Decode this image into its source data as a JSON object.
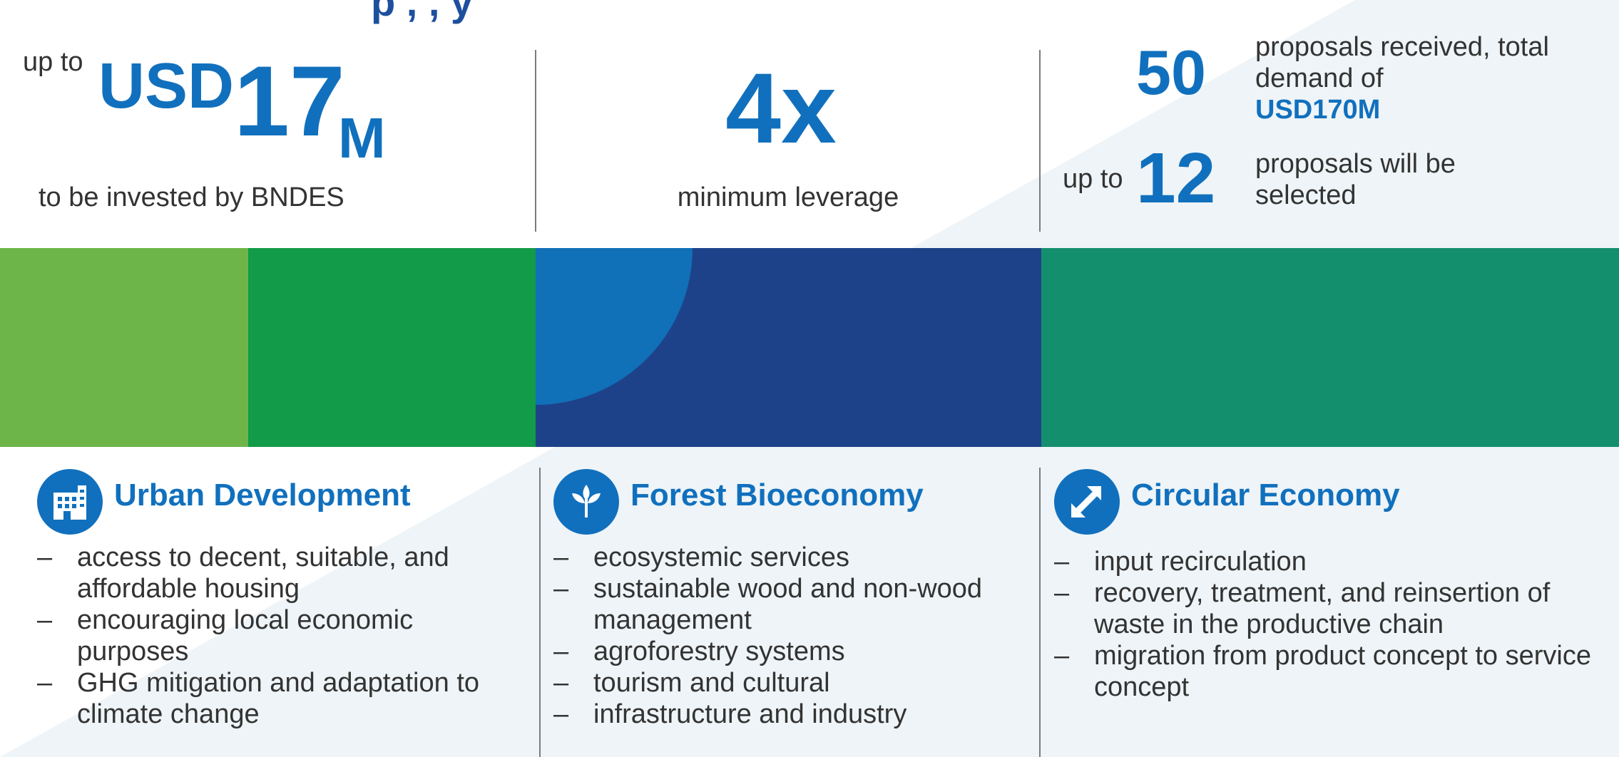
{
  "header": {
    "title_fragment": "p , , y"
  },
  "stats": {
    "investment": {
      "prefix": "up to",
      "currency": "USD",
      "amount": "17",
      "unit": "M",
      "caption": "to be invested by BNDES"
    },
    "leverage": {
      "value": "4x",
      "caption": "minimum leverage"
    },
    "proposals": {
      "received_count": "50",
      "received_text": "proposals received, total demand of",
      "demand_value": "USD170M",
      "selected_prefix": "up to",
      "selected_count": "12",
      "selected_text": "proposals will be selected"
    }
  },
  "colors": {
    "accent_blue": "#1170bd",
    "band_light_green": "#6db548",
    "band_green": "#129b48",
    "band_navy": "#1e4289",
    "band_teal": "#138f6e"
  },
  "categories": [
    {
      "title": "Urban Development",
      "icon": "building-icon",
      "items": [
        "access to decent, suitable, and affordable housing",
        "encouraging local economic purposes",
        "GHG mitigation and adaptation to climate change"
      ]
    },
    {
      "title": "Forest Bioeconomy",
      "icon": "tree-icon",
      "items": [
        "ecosystemic services",
        "sustainable wood and non-wood management",
        "agroforestry systems",
        "tourism and cultural",
        "infrastructure and industry"
      ]
    },
    {
      "title": "Circular Economy",
      "icon": "double-arrow-icon",
      "items": [
        "input recirculation",
        "recovery, treatment, and reinsertion of waste in the productive chain",
        "migration from product concept to service concept"
      ]
    }
  ]
}
